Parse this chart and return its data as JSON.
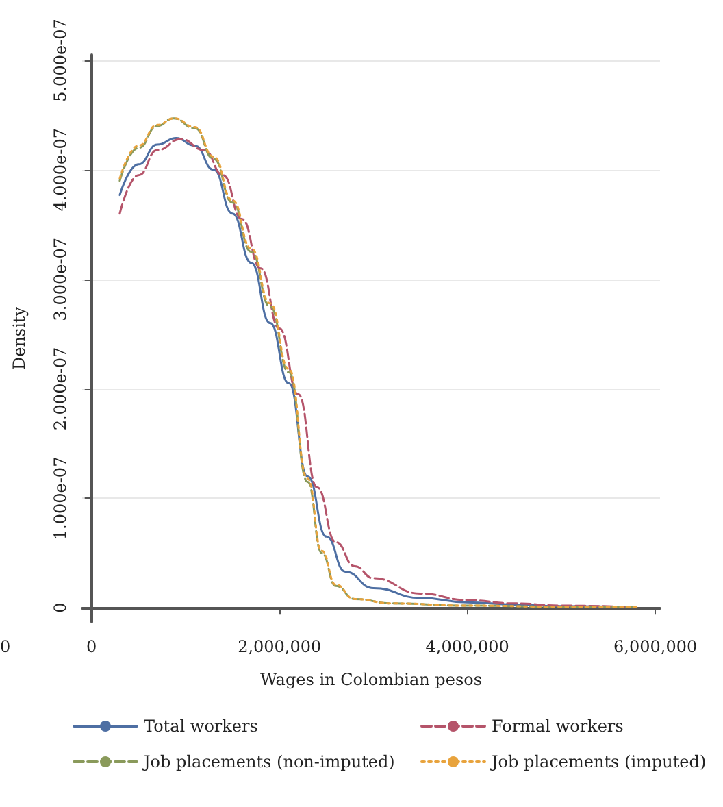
{
  "chart_data": {
    "type": "line",
    "xlabel": "Wages in Colombian pesos",
    "ylabel": "Density",
    "xlim": [
      -100000,
      6050000
    ],
    "ylim": [
      -1.3e-08,
      5.05e-07
    ],
    "xticks": [
      0,
      {
        "value": 2000000,
        "label": "2,000,000"
      },
      {
        "value": 4000000,
        "label": "4,000,000"
      },
      {
        "value": 6000000,
        "label": "6,000,000"
      }
    ],
    "yticks": [
      0,
      {
        "value": 1e-07,
        "label": "1.000e-07"
      },
      {
        "value": 2e-07,
        "label": "2.000e-07"
      },
      {
        "value": 3e-07,
        "label": "3.000e-07"
      },
      {
        "value": 4e-07,
        "label": "4.000e-07"
      },
      {
        "value": 5e-07,
        "label": "5.000e-07"
      }
    ],
    "grid": "y",
    "legend": "bottom",
    "marker": "none",
    "annotations": [
      "0"
    ],
    "series": [
      {
        "name": "Total workers",
        "color": "#4e6fa3",
        "line_style": "solid",
        "x": [
          300000,
          500000,
          700000,
          900000,
          1100000,
          1300000,
          1500000,
          1700000,
          1900000,
          2100000,
          2300000,
          2500000,
          2700000,
          3000000,
          3500000,
          4000000,
          4500000,
          5000000,
          5800000
        ],
        "values": [
          3.77e-07,
          4.05e-07,
          4.23e-07,
          4.29e-07,
          4.22e-07,
          4e-07,
          3.6e-07,
          3.15e-07,
          2.6e-07,
          2.05e-07,
          1.2e-07,
          6.5e-08,
          3.3e-08,
          1.8e-08,
          9e-09,
          5e-09,
          3e-09,
          1.5e-09,
          5e-10
        ]
      },
      {
        "name": "Formal workers",
        "color": "#b5546a",
        "line_style": "dashed",
        "x": [
          300000,
          500000,
          700000,
          950000,
          1200000,
          1400000,
          1600000,
          1800000,
          2000000,
          2200000,
          2400000,
          2600000,
          2800000,
          3000000,
          3500000,
          4000000,
          4500000,
          5000000,
          5800000
        ],
        "values": [
          3.6e-07,
          3.95e-07,
          4.18e-07,
          4.28e-07,
          4.18e-07,
          3.95e-07,
          3.55e-07,
          3.1e-07,
          2.55e-07,
          1.95e-07,
          1.1e-07,
          6e-08,
          3.8e-08,
          2.7e-08,
          1.3e-08,
          7e-09,
          4e-09,
          2e-09,
          5e-10
        ]
      },
      {
        "name": "Job placements (non-imputed)",
        "color": "#8a9a5b",
        "line_style": "dashed",
        "x": [
          300000,
          500000,
          700000,
          870000,
          1100000,
          1300000,
          1500000,
          1700000,
          1900000,
          2100000,
          2300000,
          2450000,
          2600000,
          2800000,
          3200000,
          4000000,
          5000000,
          5800000
        ],
        "values": [
          3.9e-07,
          4.2e-07,
          4.4e-07,
          4.47e-07,
          4.38e-07,
          4.1e-07,
          3.7e-07,
          3.25e-07,
          2.75e-07,
          2.15e-07,
          1.15e-07,
          5e-08,
          2e-08,
          8e-09,
          4e-09,
          2e-09,
          1e-09,
          5e-10
        ]
      },
      {
        "name": "Job placements (imputed)",
        "color": "#e8a33d",
        "line_style": "dotted",
        "x": [
          300000,
          500000,
          700000,
          880000,
          1100000,
          1300000,
          1500000,
          1700000,
          1900000,
          2100000,
          2300000,
          2450000,
          2600000,
          2800000,
          3200000,
          4000000,
          5000000,
          5800000
        ],
        "values": [
          3.92e-07,
          4.22e-07,
          4.41e-07,
          4.47e-07,
          4.39e-07,
          4.12e-07,
          3.72e-07,
          3.28e-07,
          2.78e-07,
          2.18e-07,
          1.18e-07,
          5.2e-08,
          2.1e-08,
          8e-09,
          4e-09,
          2e-09,
          1e-09,
          5e-10
        ]
      }
    ]
  }
}
